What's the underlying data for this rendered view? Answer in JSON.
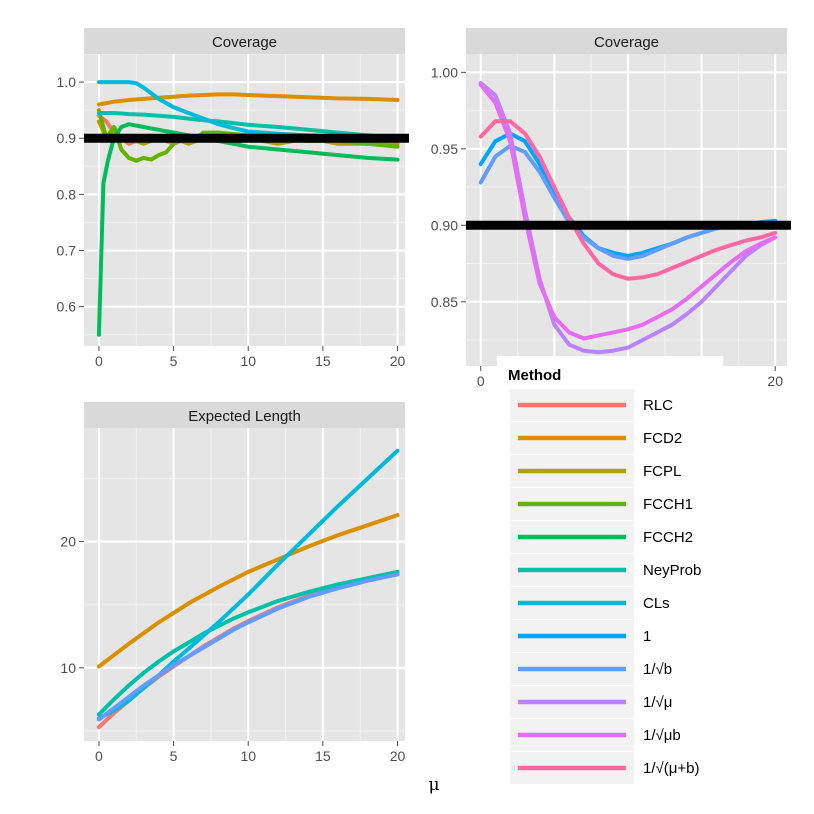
{
  "xlabel": "μ",
  "chart_data": [
    {
      "type": "line",
      "title": "Coverage",
      "xlim": [
        -1,
        20.5
      ],
      "ylim": [
        0.53,
        1.05
      ],
      "xticks": [
        0,
        5,
        10,
        15,
        20
      ],
      "yticks": [
        0.6,
        0.7,
        0.8,
        0.9,
        1.0
      ],
      "ytick_labels": [
        "0.6",
        "0.7",
        "0.8",
        "0.9",
        "1.0"
      ],
      "grid": true,
      "reference_line": 0.9,
      "series": [
        {
          "name": "RLC",
          "color": "#F8766D",
          "x": [
            0,
            0.5,
            1,
            1.5,
            2,
            3,
            4,
            5,
            6,
            7,
            8,
            9,
            10,
            12,
            14,
            16,
            18,
            20
          ],
          "y": [
            0.94,
            0.93,
            0.91,
            0.9,
            0.89,
            0.9,
            0.9,
            0.89,
            0.9,
            0.9,
            0.9,
            0.89,
            0.9,
            0.9,
            0.9,
            0.9,
            0.9,
            0.9
          ]
        },
        {
          "name": "FCD2",
          "color": "#DB8E00",
          "x": [
            0,
            1,
            2,
            3,
            4,
            5,
            6,
            7,
            8,
            9,
            10,
            12,
            14,
            16,
            18,
            20
          ],
          "y": [
            0.96,
            0.965,
            0.968,
            0.97,
            0.972,
            0.974,
            0.976,
            0.977,
            0.978,
            0.978,
            0.977,
            0.975,
            0.973,
            0.971,
            0.97,
            0.968
          ]
        },
        {
          "name": "FCPL",
          "color": "#AEA200",
          "x": [
            0,
            0.5,
            1,
            1.5,
            2,
            3,
            4,
            5,
            6,
            7,
            8,
            9,
            10,
            12,
            14,
            16,
            18,
            20
          ],
          "y": [
            0.93,
            0.9,
            0.92,
            0.9,
            0.9,
            0.89,
            0.9,
            0.9,
            0.89,
            0.9,
            0.9,
            0.89,
            0.9,
            0.89,
            0.9,
            0.89,
            0.89,
            0.89
          ]
        },
        {
          "name": "FCCH1",
          "color": "#64B200",
          "x": [
            0,
            0.5,
            1,
            1.5,
            2,
            2.5,
            3,
            3.5,
            4,
            4.5,
            5,
            5.5,
            6,
            6.5,
            7,
            8,
            10,
            12,
            14,
            16,
            18,
            20
          ],
          "y": [
            0.95,
            0.9,
            0.92,
            0.88,
            0.865,
            0.86,
            0.865,
            0.862,
            0.87,
            0.875,
            0.89,
            0.9,
            0.905,
            0.9,
            0.91,
            0.91,
            0.905,
            0.9,
            0.895,
            0.895,
            0.89,
            0.885
          ]
        },
        {
          "name": "FCCH2",
          "color": "#00BD5C",
          "x": [
            0,
            0.3,
            0.6,
            1,
            1.5,
            2,
            3,
            4,
            5,
            6,
            7,
            8,
            9,
            10,
            12,
            14,
            16,
            18,
            20
          ],
          "y": [
            0.55,
            0.82,
            0.86,
            0.9,
            0.92,
            0.925,
            0.92,
            0.915,
            0.91,
            0.905,
            0.9,
            0.895,
            0.89,
            0.885,
            0.88,
            0.875,
            0.87,
            0.865,
            0.862
          ]
        },
        {
          "name": "NeyProb",
          "color": "#00C1A7",
          "x": [
            0,
            1,
            2,
            3,
            4,
            5,
            6,
            7,
            8,
            9,
            10,
            12,
            14,
            16,
            18,
            20
          ],
          "y": [
            0.945,
            0.945,
            0.943,
            0.942,
            0.94,
            0.938,
            0.935,
            0.932,
            0.93,
            0.927,
            0.924,
            0.92,
            0.915,
            0.91,
            0.905,
            0.9
          ]
        },
        {
          "name": "CLs",
          "color": "#00BADE",
          "x": [
            0,
            1,
            2,
            2.5,
            3,
            4,
            5,
            6,
            7,
            8,
            9,
            10,
            12,
            14,
            16,
            18,
            20
          ],
          "y": [
            1.0,
            1.0,
            1.0,
            0.998,
            0.99,
            0.97,
            0.955,
            0.945,
            0.935,
            0.925,
            0.918,
            0.912,
            0.908,
            0.905,
            0.903,
            0.902,
            0.902
          ]
        }
      ]
    },
    {
      "type": "line",
      "title": "Coverage",
      "xlim": [
        -1,
        20.8
      ],
      "ylim": [
        0.808,
        1.012
      ],
      "xticks": [
        0,
        20
      ],
      "yticks": [
        0.85,
        0.9,
        0.95,
        1.0
      ],
      "ytick_labels": [
        "0.85",
        "0.90",
        "0.95",
        "1.00"
      ],
      "grid": true,
      "reference_line": 0.9,
      "series": [
        {
          "name": "1",
          "color": "#00A5FF",
          "x": [
            0,
            1,
            2,
            3,
            4,
            5,
            6,
            7,
            8,
            9,
            10,
            11,
            12,
            13,
            14,
            15,
            16,
            17,
            18,
            19,
            20
          ],
          "y": [
            0.94,
            0.955,
            0.96,
            0.955,
            0.94,
            0.92,
            0.905,
            0.893,
            0.885,
            0.882,
            0.88,
            0.882,
            0.885,
            0.888,
            0.892,
            0.895,
            0.898,
            0.9,
            0.9,
            0.902,
            0.903
          ]
        },
        {
          "name": "1/√b",
          "color": "#619CFF",
          "x": [
            0,
            1,
            2,
            3,
            4,
            5,
            6,
            7,
            8,
            9,
            10,
            11,
            12,
            13,
            14,
            15,
            16,
            17,
            18,
            19,
            20
          ],
          "y": [
            0.928,
            0.945,
            0.952,
            0.948,
            0.935,
            0.918,
            0.902,
            0.892,
            0.885,
            0.88,
            0.878,
            0.88,
            0.884,
            0.888,
            0.892,
            0.895,
            0.898,
            0.9,
            0.9,
            0.901,
            0.902
          ]
        },
        {
          "name": "1/√μ",
          "color": "#B983FF",
          "x": [
            0,
            1,
            2,
            3,
            4,
            5,
            6,
            7,
            8,
            9,
            10,
            11,
            12,
            13,
            14,
            15,
            16,
            17,
            18,
            19,
            20
          ],
          "y": [
            0.993,
            0.985,
            0.96,
            0.91,
            0.865,
            0.835,
            0.822,
            0.818,
            0.817,
            0.818,
            0.82,
            0.825,
            0.83,
            0.835,
            0.842,
            0.85,
            0.86,
            0.87,
            0.88,
            0.887,
            0.892
          ]
        },
        {
          "name": "1/√μb",
          "color": "#E76BF3",
          "x": [
            0,
            1,
            2,
            3,
            4,
            5,
            6,
            7,
            8,
            9,
            10,
            11,
            12,
            13,
            14,
            15,
            16,
            17,
            18,
            19,
            20
          ],
          "y": [
            0.992,
            0.98,
            0.955,
            0.905,
            0.862,
            0.84,
            0.83,
            0.826,
            0.828,
            0.83,
            0.832,
            0.835,
            0.84,
            0.845,
            0.852,
            0.86,
            0.868,
            0.876,
            0.883,
            0.888,
            0.892
          ]
        },
        {
          "name": "1/√(μ+b)",
          "color": "#FF67A4",
          "x": [
            0,
            1,
            2,
            3,
            4,
            5,
            6,
            7,
            8,
            9,
            10,
            11,
            12,
            13,
            14,
            15,
            16,
            17,
            18,
            19,
            20
          ],
          "y": [
            0.958,
            0.968,
            0.968,
            0.96,
            0.945,
            0.925,
            0.905,
            0.888,
            0.875,
            0.868,
            0.865,
            0.866,
            0.868,
            0.872,
            0.876,
            0.88,
            0.884,
            0.887,
            0.89,
            0.892,
            0.895
          ]
        }
      ]
    },
    {
      "type": "line",
      "title": "Expected Length",
      "xlim": [
        -1,
        20.5
      ],
      "ylim": [
        4.2,
        29
      ],
      "xticks": [
        0,
        5,
        10,
        15,
        20
      ],
      "yticks": [
        10,
        20
      ],
      "ytick_labels": [
        "10",
        "20"
      ],
      "grid": true,
      "series": [
        {
          "name": "RLC",
          "color": "#F8766D",
          "x": [
            0,
            1,
            2,
            3,
            4,
            5,
            6,
            7,
            8,
            9,
            10,
            12,
            14,
            16,
            18,
            20
          ],
          "y": [
            5.3,
            6.4,
            7.4,
            8.4,
            9.3,
            10.1,
            10.9,
            11.7,
            12.4,
            13.1,
            13.7,
            14.8,
            15.7,
            16.5,
            17.1,
            17.6
          ]
        },
        {
          "name": "FCD2",
          "color": "#DB8E00",
          "x": [
            0,
            2,
            4,
            6,
            8,
            10,
            12,
            14,
            16,
            18,
            20
          ],
          "y": [
            10.1,
            11.9,
            13.6,
            15.1,
            16.4,
            17.6,
            18.6,
            19.6,
            20.5,
            21.3,
            22.1
          ]
        },
        {
          "name": "NeyProb",
          "color": "#00C1A7",
          "x": [
            0,
            1,
            2,
            3,
            4,
            5,
            6,
            7,
            8,
            9,
            10,
            12,
            14,
            16,
            18,
            20
          ],
          "y": [
            6.3,
            7.5,
            8.6,
            9.6,
            10.5,
            11.3,
            12.0,
            12.7,
            13.3,
            13.9,
            14.4,
            15.3,
            16.0,
            16.6,
            17.1,
            17.6
          ]
        },
        {
          "name": "CLs",
          "color": "#00BADE",
          "x": [
            0,
            1,
            2,
            3,
            4,
            5,
            6,
            8,
            10,
            12,
            14,
            16,
            18,
            20
          ],
          "y": [
            6.0,
            6.6,
            7.4,
            8.4,
            9.4,
            10.5,
            11.5,
            13.6,
            15.8,
            18.2,
            20.5,
            22.8,
            25.0,
            27.2
          ]
        },
        {
          "name": "1/√b",
          "color": "#619CFF",
          "x": [
            0,
            1,
            2,
            3,
            4,
            5,
            6,
            7,
            8,
            9,
            10,
            12,
            14,
            16,
            18,
            20
          ],
          "y": [
            5.9,
            6.8,
            7.7,
            8.6,
            9.4,
            10.2,
            10.9,
            11.6,
            12.3,
            13.0,
            13.6,
            14.7,
            15.6,
            16.3,
            16.9,
            17.4
          ]
        }
      ]
    }
  ],
  "legend": {
    "title": "Method",
    "placement": "bottom-right",
    "items": [
      {
        "label": "RLC",
        "color": "#F8766D"
      },
      {
        "label": "FCD2",
        "color": "#DB8E00"
      },
      {
        "label": "FCPL",
        "color": "#AEA200"
      },
      {
        "label": "FCCH1",
        "color": "#64B200"
      },
      {
        "label": "FCCH2",
        "color": "#00BD5C"
      },
      {
        "label": "NeyProb",
        "color": "#00C1A7"
      },
      {
        "label": "CLs",
        "color": "#00BADE"
      },
      {
        "label": "1",
        "color": "#00A5FF"
      },
      {
        "label": "1/√b",
        "color": "#619CFF"
      },
      {
        "label": "1/√μ",
        "color": "#B983FF"
      },
      {
        "label": "1/√μb",
        "color": "#E76BF3"
      },
      {
        "label": "1/√(μ+b)",
        "color": "#FF67A4"
      }
    ]
  }
}
